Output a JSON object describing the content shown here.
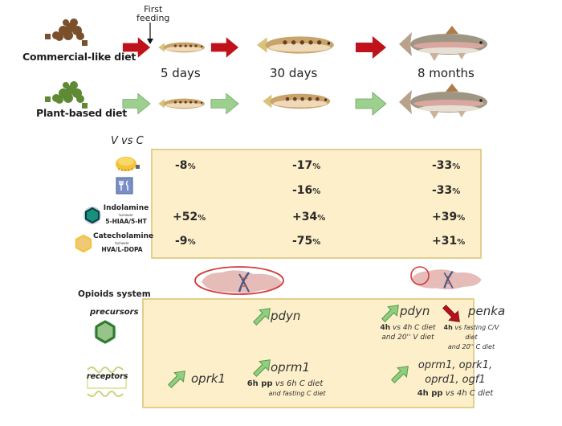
{
  "timeline": {
    "first_feeding": "First\nfeeding",
    "diets": [
      {
        "label": "Commercial-like diet",
        "pellet_color": "#7a4f2c",
        "arrow_color": "#c0121a"
      },
      {
        "label": "Plant-based diet",
        "pellet_color": "#5e8a35",
        "arrow_color": "#9dd08f"
      }
    ],
    "stages": [
      "5 days",
      "30 days",
      "8 months"
    ]
  },
  "comparison": {
    "title": "V vs C",
    "rows": [
      {
        "icon": "growth-measuring-tape-icon",
        "label": "",
        "sub": "",
        "values": [
          "-8%",
          "-17%",
          "-33%"
        ]
      },
      {
        "icon": "food-intake-icon",
        "label": "",
        "sub": "",
        "values": [
          "",
          "-16%",
          "-33%"
        ]
      },
      {
        "icon": "indolamine-hexagon-icon",
        "label": "Indolamine",
        "turnover": "turnover",
        "sub": "5-HIAA/5-HT",
        "values": [
          "+52%",
          "+34%",
          "+39%"
        ]
      },
      {
        "icon": "catecholamine-hexagon-icon",
        "label": "Catecholamine",
        "turnover": "turnover",
        "sub": "HVA/L-DOPA",
        "values": [
          "-9%",
          "-75%",
          "+31%"
        ]
      }
    ]
  },
  "opioids": {
    "title": "Opioids system",
    "precursors_label": "precursors",
    "receptors_label": "receptors",
    "precursors": [
      {
        "gene": "pdyn",
        "direction": "up",
        "note_bold": "",
        "note": "",
        "note2": ""
      },
      {
        "gene": "pdyn",
        "direction": "up",
        "note_bold": "4h",
        "note": " vs 4h C diet",
        "note2": "and 20'' V diet"
      },
      {
        "gene": "penka",
        "direction": "down",
        "note_bold": "4h",
        "note": " vs fasting C/V diet",
        "note2": "and 20'' C diet"
      }
    ],
    "receptors": [
      {
        "gene": "oprk1",
        "direction": "up"
      },
      {
        "gene": "oprm1",
        "direction": "up",
        "note_bold": "6h pp",
        "note": " vs 6h C diet",
        "note2": "and fasting C diet"
      },
      {
        "gene": "oprm1, oprk1,",
        "gene2": "oprd1, ogf1",
        "direction": "up",
        "note_bold": "4h pp",
        "note": " vs 4h C diet"
      }
    ]
  },
  "colors": {
    "box_fill": "#fdefc9",
    "box_border": "#e2cf8f",
    "up_arrow": "#8fcf7f",
    "down_arrow": "#b5121b",
    "brain_circle": "#d43a3a"
  }
}
